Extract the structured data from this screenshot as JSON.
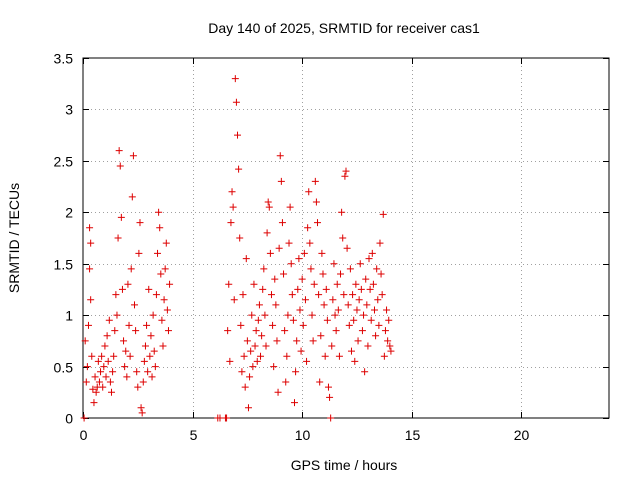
{
  "chart_data": {
    "type": "scatter",
    "title": "Day 140 of 2025, SRMTID for receiver cas1",
    "xlabel": "GPS time / hours",
    "ylabel": "SRMTID / TECUs",
    "xlim": [
      0,
      24
    ],
    "ylim": [
      0,
      3.5
    ],
    "xticks": [
      0,
      5,
      10,
      15,
      20
    ],
    "xtick_labels": [
      "0",
      "5",
      "10",
      "15",
      "20"
    ],
    "yticks": [
      0,
      0.5,
      1,
      1.5,
      2,
      2.5,
      3,
      3.5
    ],
    "ytick_labels": [
      "0",
      "0.5",
      "1",
      "1.5",
      "2",
      "2.5",
      "3",
      "3.5"
    ],
    "grid": true,
    "marker": "+",
    "series": [
      {
        "name": "cas1",
        "color": "#dd0000",
        "points": [
          [
            0.05,
            0.0
          ],
          [
            0.1,
            0.75
          ],
          [
            0.15,
            0.35
          ],
          [
            0.2,
            0.5
          ],
          [
            0.25,
            0.9
          ],
          [
            0.3,
            1.45
          ],
          [
            0.3,
            1.85
          ],
          [
            0.35,
            1.7
          ],
          [
            0.35,
            1.15
          ],
          [
            0.4,
            0.6
          ],
          [
            0.45,
            0.28
          ],
          [
            0.5,
            0.15
          ],
          [
            0.55,
            0.4
          ],
          [
            0.6,
            0.25
          ],
          [
            0.65,
            0.3
          ],
          [
            0.7,
            0.55
          ],
          [
            0.75,
            0.35
          ],
          [
            0.8,
            0.45
          ],
          [
            0.85,
            0.6
          ],
          [
            0.9,
            0.3
          ],
          [
            0.95,
            0.5
          ],
          [
            1.0,
            0.7
          ],
          [
            1.05,
            0.4
          ],
          [
            1.1,
            0.8
          ],
          [
            1.15,
            0.55
          ],
          [
            1.2,
            0.95
          ],
          [
            1.25,
            0.35
          ],
          [
            1.3,
            0.25
          ],
          [
            1.35,
            0.45
          ],
          [
            1.4,
            0.6
          ],
          [
            1.45,
            0.85
          ],
          [
            1.5,
            1.2
          ],
          [
            1.55,
            1.0
          ],
          [
            1.6,
            1.75
          ],
          [
            1.65,
            2.6
          ],
          [
            1.7,
            2.45
          ],
          [
            1.75,
            1.95
          ],
          [
            1.8,
            1.25
          ],
          [
            1.85,
            0.75
          ],
          [
            1.9,
            0.5
          ],
          [
            1.95,
            0.65
          ],
          [
            2.0,
            0.4
          ],
          [
            2.05,
            1.3
          ],
          [
            2.1,
            0.9
          ],
          [
            2.15,
            0.6
          ],
          [
            2.2,
            1.45
          ],
          [
            2.25,
            2.15
          ],
          [
            2.3,
            2.55
          ],
          [
            2.35,
            1.1
          ],
          [
            2.4,
            0.85
          ],
          [
            2.45,
            0.45
          ],
          [
            2.5,
            0.3
          ],
          [
            2.55,
            1.6
          ],
          [
            2.6,
            1.9
          ],
          [
            2.65,
            0.1
          ],
          [
            2.7,
            0.05
          ],
          [
            2.75,
            0.35
          ],
          [
            2.8,
            0.55
          ],
          [
            2.85,
            0.7
          ],
          [
            2.9,
            0.9
          ],
          [
            2.95,
            0.45
          ],
          [
            3.0,
            1.25
          ],
          [
            3.05,
            0.6
          ],
          [
            3.1,
            0.8
          ],
          [
            3.15,
            0.4
          ],
          [
            3.2,
            1.0
          ],
          [
            3.25,
            0.65
          ],
          [
            3.3,
            0.5
          ],
          [
            3.35,
            1.2
          ],
          [
            3.4,
            1.6
          ],
          [
            3.45,
            2.0
          ],
          [
            3.5,
            1.85
          ],
          [
            3.55,
            1.4
          ],
          [
            3.6,
            0.95
          ],
          [
            3.65,
            0.7
          ],
          [
            3.7,
            1.15
          ],
          [
            3.75,
            1.45
          ],
          [
            3.8,
            1.7
          ],
          [
            3.85,
            1.05
          ],
          [
            3.9,
            0.85
          ],
          [
            3.95,
            1.3
          ],
          [
            6.15,
            0.0
          ],
          [
            6.25,
            0.0
          ],
          [
            6.5,
            0.0
          ],
          [
            6.55,
            0.0
          ],
          [
            6.6,
            0.85
          ],
          [
            6.65,
            1.3
          ],
          [
            6.7,
            0.55
          ],
          [
            6.75,
            1.9
          ],
          [
            6.8,
            2.2
          ],
          [
            6.85,
            2.05
          ],
          [
            6.9,
            1.15
          ],
          [
            6.95,
            3.3
          ],
          [
            7.0,
            3.07
          ],
          [
            7.05,
            2.75
          ],
          [
            7.1,
            2.42
          ],
          [
            7.15,
            1.75
          ],
          [
            7.2,
            0.9
          ],
          [
            7.25,
            0.45
          ],
          [
            7.3,
            1.2
          ],
          [
            7.35,
            0.6
          ],
          [
            7.4,
            0.3
          ],
          [
            7.45,
            1.55
          ],
          [
            7.5,
            0.75
          ],
          [
            7.55,
            0.1
          ],
          [
            7.6,
            0.4
          ],
          [
            7.65,
            0.65
          ],
          [
            7.7,
            1.0
          ],
          [
            7.75,
            0.5
          ],
          [
            7.8,
            1.3
          ],
          [
            7.85,
            0.7
          ],
          [
            7.9,
            0.85
          ],
          [
            7.95,
            0.55
          ],
          [
            8.0,
            0.95
          ],
          [
            8.05,
            1.1
          ],
          [
            8.1,
            0.6
          ],
          [
            8.15,
            0.8
          ],
          [
            8.2,
            1.25
          ],
          [
            8.25,
            1.45
          ],
          [
            8.3,
            1.0
          ],
          [
            8.35,
            0.7
          ],
          [
            8.4,
            1.8
          ],
          [
            8.45,
            2.1
          ],
          [
            8.5,
            2.05
          ],
          [
            8.55,
            1.6
          ],
          [
            8.6,
            1.2
          ],
          [
            8.65,
            0.9
          ],
          [
            8.7,
            0.5
          ],
          [
            8.75,
            1.35
          ],
          [
            8.8,
            1.1
          ],
          [
            8.85,
            0.75
          ],
          [
            8.9,
            0.25
          ],
          [
            8.95,
            1.65
          ],
          [
            9.0,
            2.55
          ],
          [
            9.05,
            2.3
          ],
          [
            9.1,
            1.9
          ],
          [
            9.15,
            1.4
          ],
          [
            9.2,
            0.85
          ],
          [
            9.25,
            0.35
          ],
          [
            9.3,
            0.6
          ],
          [
            9.35,
            1.0
          ],
          [
            9.4,
            1.7
          ],
          [
            9.45,
            2.05
          ],
          [
            9.5,
            1.5
          ],
          [
            9.55,
            1.2
          ],
          [
            9.6,
            0.95
          ],
          [
            9.65,
            0.15
          ],
          [
            9.7,
            0.45
          ],
          [
            9.75,
            0.75
          ],
          [
            9.8,
            1.25
          ],
          [
            9.85,
            1.55
          ],
          [
            9.9,
            1.05
          ],
          [
            9.95,
            0.65
          ],
          [
            10.0,
            1.35
          ],
          [
            10.05,
            0.9
          ],
          [
            10.1,
            1.6
          ],
          [
            10.15,
            1.15
          ],
          [
            10.2,
            0.55
          ],
          [
            10.25,
            1.85
          ],
          [
            10.3,
            2.2
          ],
          [
            10.35,
            1.7
          ],
          [
            10.4,
            1.45
          ],
          [
            10.45,
            1.0
          ],
          [
            10.5,
            0.75
          ],
          [
            10.55,
            1.3
          ],
          [
            10.6,
            2.3
          ],
          [
            10.65,
            2.1
          ],
          [
            10.7,
            1.9
          ],
          [
            10.75,
            1.2
          ],
          [
            10.8,
            0.35
          ],
          [
            10.85,
            0.8
          ],
          [
            10.9,
            1.6
          ],
          [
            10.95,
            1.4
          ],
          [
            11.0,
            1.1
          ],
          [
            11.05,
            0.6
          ],
          [
            11.1,
            1.25
          ],
          [
            11.15,
            0.95
          ],
          [
            11.2,
            0.3
          ],
          [
            11.25,
            0.2
          ],
          [
            11.3,
            0.0
          ],
          [
            11.35,
            0.7
          ],
          [
            11.4,
            1.15
          ],
          [
            11.45,
            1.5
          ],
          [
            11.5,
            1.0
          ],
          [
            11.55,
            0.85
          ],
          [
            11.6,
            1.3
          ],
          [
            11.65,
            1.05
          ],
          [
            11.7,
            0.6
          ],
          [
            11.75,
            1.4
          ],
          [
            11.8,
            2.0
          ],
          [
            11.85,
            1.75
          ],
          [
            11.9,
            1.2
          ],
          [
            11.95,
            2.35
          ],
          [
            12.0,
            2.4
          ],
          [
            12.05,
            1.65
          ],
          [
            12.1,
            1.1
          ],
          [
            12.15,
            0.9
          ],
          [
            12.2,
            1.45
          ],
          [
            12.25,
            0.65
          ],
          [
            12.3,
            1.2
          ],
          [
            12.35,
            0.95
          ],
          [
            12.4,
            0.55
          ],
          [
            12.45,
            1.3
          ],
          [
            12.5,
            1.05
          ],
          [
            12.55,
            0.75
          ],
          [
            12.6,
            1.15
          ],
          [
            12.65,
            1.5
          ],
          [
            12.7,
            1.25
          ],
          [
            12.75,
            0.85
          ],
          [
            12.8,
            1.0
          ],
          [
            12.85,
            0.45
          ],
          [
            12.9,
            1.35
          ],
          [
            12.95,
            1.1
          ],
          [
            13.0,
            0.7
          ],
          [
            13.05,
            1.55
          ],
          [
            13.1,
            1.25
          ],
          [
            13.15,
            0.95
          ],
          [
            13.2,
            1.6
          ],
          [
            13.25,
            1.3
          ],
          [
            13.3,
            1.05
          ],
          [
            13.35,
            0.8
          ],
          [
            13.4,
            1.45
          ],
          [
            13.45,
            1.15
          ],
          [
            13.5,
            0.9
          ],
          [
            13.55,
            1.7
          ],
          [
            13.6,
            1.4
          ],
          [
            13.65,
            1.2
          ],
          [
            13.7,
            1.98
          ],
          [
            13.75,
            0.6
          ],
          [
            13.8,
            0.85
          ],
          [
            13.85,
            1.05
          ],
          [
            13.9,
            0.75
          ],
          [
            13.95,
            0.95
          ],
          [
            14.0,
            0.7
          ],
          [
            14.05,
            0.65
          ]
        ]
      }
    ]
  }
}
